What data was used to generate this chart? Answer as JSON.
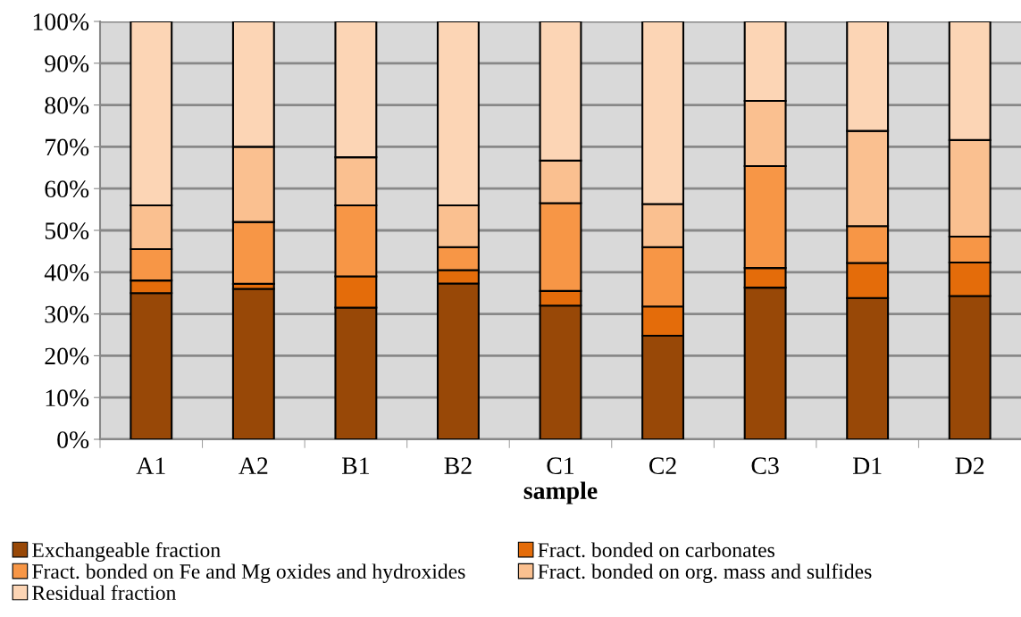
{
  "chart_data": {
    "type": "bar",
    "stacked": true,
    "xlabel": "sample",
    "categories": [
      "A1",
      "A2",
      "B1",
      "B2",
      "C1",
      "C2",
      "C3",
      "D1",
      "D2"
    ],
    "series": [
      {
        "name": "Exchangeable fraction",
        "color": "#984807",
        "values": [
          35,
          36,
          31.5,
          37.3,
          32,
          24.8,
          36.3,
          33.8,
          34.3
        ]
      },
      {
        "name": "Fract. bonded on carbonates",
        "color": "#e46c0a",
        "values": [
          3,
          1.2,
          7.5,
          3.2,
          3.5,
          7,
          4.7,
          8.4,
          8
        ]
      },
      {
        "name": "Fract. bonded on Fe and Mg oxides and hydroxides",
        "color": "#f79646",
        "values": [
          7.5,
          14.8,
          17,
          5.5,
          21,
          14.2,
          24.4,
          8.8,
          6.2
        ]
      },
      {
        "name": "Fract. bonded on org. mass and sulfides",
        "color": "#fac090",
        "values": [
          10.5,
          18,
          11.5,
          10,
          10.2,
          10.3,
          15.6,
          22.8,
          23.1
        ]
      },
      {
        "name": "Residual fraction",
        "color": "#fcd5b5",
        "values": [
          44,
          30,
          32.5,
          44,
          33.3,
          43.7,
          19,
          26.2,
          28.4
        ]
      }
    ],
    "ylim": [
      0,
      100
    ],
    "yticks": [
      {
        "value": 0,
        "label": "0%"
      },
      {
        "value": 10,
        "label": "10%"
      },
      {
        "value": 20,
        "label": "20%"
      },
      {
        "value": 30,
        "label": "30%"
      },
      {
        "value": 40,
        "label": "40%"
      },
      {
        "value": 50,
        "label": "50%"
      },
      {
        "value": 60,
        "label": "60%"
      },
      {
        "value": 70,
        "label": "70%"
      },
      {
        "value": 80,
        "label": "80%"
      },
      {
        "value": 90,
        "label": "90%"
      },
      {
        "value": 100,
        "label": "100%"
      }
    ],
    "grid": "y",
    "legend": "bottom"
  }
}
